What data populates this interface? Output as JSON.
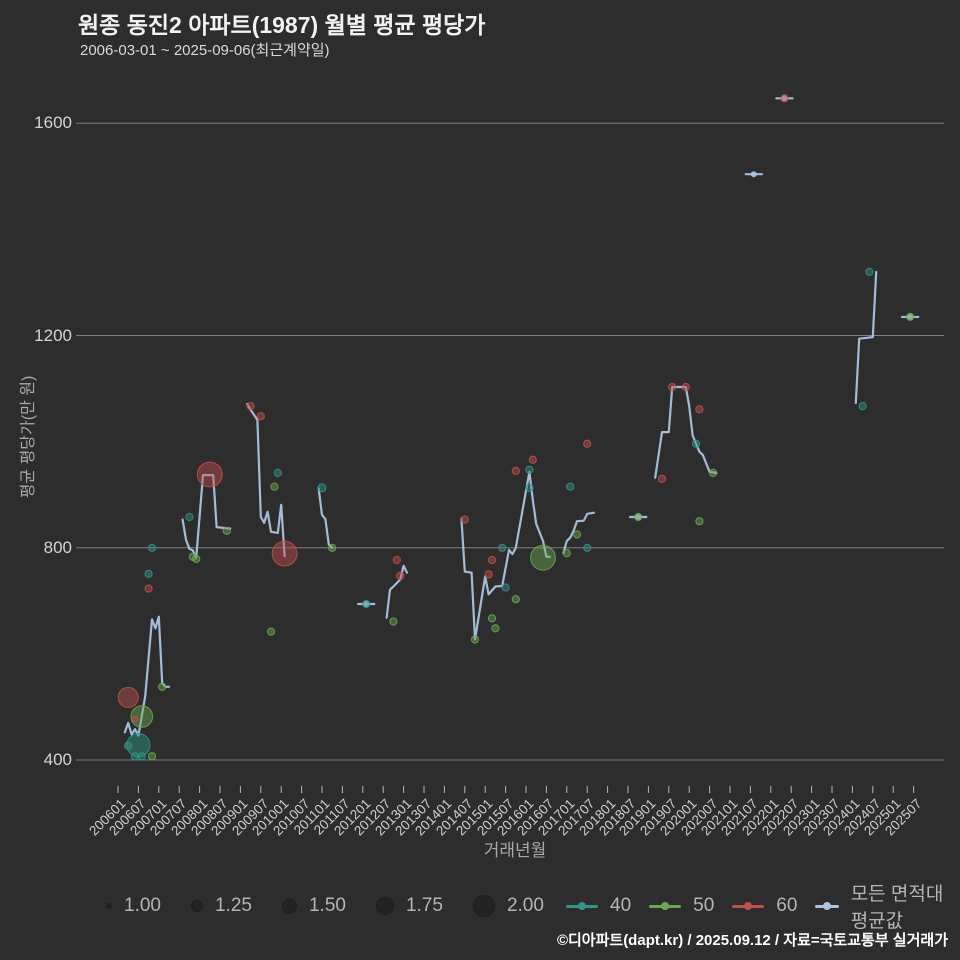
{
  "header": {
    "title": "원종 동진2 아파트(1987) 월별 평균 평당가",
    "subtitle": "2006-03-01 ~ 2025-09-06(최근계약일)"
  },
  "footer": {
    "credit": "©디아파트(dapt.kr) / 2025.09.12 / 자료=국토교통부 실거래가"
  },
  "colors": {
    "background": "#2d2d2d",
    "grid": "#9a9a9a",
    "avg_line": "#aac4e2",
    "area_40": "#2e9688",
    "area_50": "#6aa84f",
    "area_60": "#c0504d",
    "size_dot": "#232323"
  },
  "chart_data": {
    "type": "line+scatter",
    "title": "원종 동진2 아파트(1987) 월별 평균 평당가",
    "xlabel": "거래년월",
    "ylabel": "평균 평당가(만 원)",
    "grid": true,
    "y_axis": {
      "ticks": [
        400,
        800,
        1200,
        1600
      ],
      "range": [
        330,
        1700
      ]
    },
    "x_axis": {
      "tick_labels": [
        "200601",
        "200607",
        "200701",
        "200707",
        "200801",
        "200807",
        "200901",
        "200907",
        "201001",
        "201007",
        "201101",
        "201107",
        "201201",
        "201207",
        "201301",
        "201307",
        "201401",
        "201407",
        "201501",
        "201507",
        "201601",
        "201607",
        "201701",
        "201707",
        "201801",
        "201807",
        "201901",
        "201907",
        "202001",
        "202007",
        "202101",
        "202107",
        "202201",
        "202207",
        "202301",
        "202307",
        "202401",
        "202407",
        "202501",
        "202507"
      ]
    },
    "legend": {
      "sizes": [
        {
          "label": "1.00"
        },
        {
          "label": "1.25"
        },
        {
          "label": "1.50"
        },
        {
          "label": "1.75"
        },
        {
          "label": "2.00"
        }
      ],
      "series": [
        {
          "label": "40",
          "color": "#2e9688"
        },
        {
          "label": "50",
          "color": "#6aa84f"
        },
        {
          "label": "60",
          "color": "#c0504d"
        },
        {
          "label": "모든 면적대 평균값",
          "color": "#aac4e2"
        }
      ]
    },
    "avg_line": {
      "name": "모든 면적대 평균값",
      "segments": [
        [
          [
            200603,
            452
          ],
          [
            200604,
            470
          ],
          [
            200605,
            448
          ],
          [
            200606,
            458
          ],
          [
            200607,
            446
          ],
          [
            200609,
            520
          ],
          [
            200611,
            665
          ],
          [
            200612,
            648
          ],
          [
            200701,
            670
          ],
          [
            200702,
            545
          ],
          [
            200703,
            538
          ],
          [
            200704,
            538
          ]
        ],
        [
          [
            200708,
            853
          ],
          [
            200709,
            815
          ],
          [
            200710,
            798
          ],
          [
            200711,
            795
          ],
          [
            200712,
            781
          ],
          [
            200802,
            937
          ],
          [
            200805,
            937
          ],
          [
            200806,
            839
          ],
          [
            200810,
            836
          ]
        ],
        [
          [
            200903,
            1071
          ],
          [
            200904,
            1060
          ],
          [
            200906,
            1041
          ],
          [
            200907,
            858
          ],
          [
            200908,
            847
          ],
          [
            200909,
            868
          ],
          [
            200910,
            830
          ],
          [
            200912,
            828
          ],
          [
            201001,
            881
          ],
          [
            201002,
            784
          ]
        ],
        [
          [
            201012,
            912
          ],
          [
            201101,
            862
          ],
          [
            201102,
            854
          ],
          [
            201103,
            806
          ],
          [
            201104,
            800
          ]
        ],
        [
          [
            201202,
            694
          ]
        ],
        [
          [
            201208,
            668
          ],
          [
            201209,
            721
          ],
          [
            201210,
            727
          ],
          [
            201212,
            740
          ],
          [
            201301,
            766
          ],
          [
            201302,
            753
          ]
        ],
        [
          [
            201406,
            855
          ],
          [
            201407,
            755
          ],
          [
            201409,
            753
          ],
          [
            201410,
            627
          ],
          [
            201501,
            746
          ],
          [
            201502,
            712
          ],
          [
            201504,
            727
          ],
          [
            201506,
            728
          ],
          [
            201508,
            796
          ],
          [
            201509,
            788
          ],
          [
            201510,
            800
          ],
          [
            201602,
            943
          ],
          [
            201603,
            890
          ],
          [
            201604,
            845
          ],
          [
            201606,
            813
          ],
          [
            201607,
            783
          ],
          [
            201608,
            783
          ]
        ],
        [
          [
            201612,
            790
          ],
          [
            201701,
            813
          ],
          [
            201702,
            819
          ],
          [
            201703,
            832
          ],
          [
            201704,
            850
          ],
          [
            201706,
            851
          ],
          [
            201707,
            864
          ],
          [
            201709,
            866
          ]
        ],
        [
          [
            201810,
            858
          ]
        ],
        [
          [
            201903,
            932
          ],
          [
            201905,
            1018
          ],
          [
            201907,
            1018
          ],
          [
            201908,
            1103
          ],
          [
            201912,
            1103
          ],
          [
            202001,
            1067
          ],
          [
            202002,
            1012
          ],
          [
            202003,
            996
          ],
          [
            202004,
            981
          ],
          [
            202005,
            975
          ],
          [
            202007,
            943
          ],
          [
            202009,
            941
          ]
        ],
        [
          [
            202108,
            1504
          ]
        ],
        [
          [
            202205,
            1647
          ]
        ],
        [
          [
            202402,
            1073
          ],
          [
            202403,
            1194
          ],
          [
            202407,
            1197
          ],
          [
            202408,
            1320
          ]
        ],
        [
          [
            202506,
            1235
          ]
        ]
      ]
    },
    "scatter_order": [
      "area_group",
      "yyyymm",
      "value",
      "size"
    ],
    "scatter": [
      [
        "40",
        200604,
        427,
        1.2
      ],
      [
        "40",
        200606,
        407,
        1.2
      ],
      [
        "40",
        200608,
        407,
        1.2
      ],
      [
        "40",
        200607,
        428,
        2.2
      ],
      [
        "40",
        200610,
        751,
        1.2
      ],
      [
        "40",
        200611,
        800,
        1.2
      ],
      [
        "40",
        200710,
        858,
        1.2
      ],
      [
        "40",
        200912,
        941,
        1.2
      ],
      [
        "40",
        201101,
        913,
        1.25
      ],
      [
        "40",
        201202,
        694,
        1.2
      ],
      [
        "40",
        201506,
        800,
        1.2
      ],
      [
        "40",
        201507,
        725,
        1.2
      ],
      [
        "40",
        201602,
        947,
        1.2
      ],
      [
        "40",
        201602,
        913,
        1.2
      ],
      [
        "40",
        201702,
        915,
        1.2
      ],
      [
        "40",
        201707,
        800,
        1.2
      ],
      [
        "40",
        202003,
        996,
        1.2
      ],
      [
        "40",
        202404,
        1067,
        1.2
      ],
      [
        "40",
        202406,
        1320,
        1.2
      ],
      [
        "50",
        200608,
        482,
        2.1
      ],
      [
        "50",
        200611,
        407,
        1.2
      ],
      [
        "50",
        200702,
        538,
        1.2
      ],
      [
        "50",
        200711,
        783,
        1.2
      ],
      [
        "50",
        200712,
        779,
        1.2
      ],
      [
        "50",
        200809,
        832,
        1.2
      ],
      [
        "50",
        200910,
        642,
        1.2
      ],
      [
        "50",
        200911,
        915,
        1.2
      ],
      [
        "50",
        201104,
        800,
        1.2
      ],
      [
        "50",
        201210,
        661,
        1.2
      ],
      [
        "50",
        201410,
        627,
        1.2
      ],
      [
        "50",
        201503,
        667,
        1.2
      ],
      [
        "50",
        201504,
        648,
        1.2
      ],
      [
        "50",
        201510,
        703,
        1.2
      ],
      [
        "50",
        201606,
        781,
        2.3
      ],
      [
        "50",
        201701,
        790,
        1.2
      ],
      [
        "50",
        201704,
        825,
        1.2
      ],
      [
        "50",
        201810,
        858,
        1.2
      ],
      [
        "50",
        202004,
        850,
        1.2
      ],
      [
        "50",
        202008,
        941,
        1.2
      ],
      [
        "50",
        202506,
        1235,
        1.2
      ],
      [
        "60",
        200604,
        518,
        2.0
      ],
      [
        "60",
        200606,
        477,
        1.1
      ],
      [
        "60",
        200610,
        723,
        1.2
      ],
      [
        "60",
        200804,
        938,
        2.3
      ],
      [
        "60",
        200904,
        1067,
        1.2
      ],
      [
        "60",
        200907,
        1048,
        1.2
      ],
      [
        "60",
        201002,
        789,
        2.3
      ],
      [
        "60",
        201211,
        777,
        1.2
      ],
      [
        "60",
        201212,
        747,
        1.2
      ],
      [
        "60",
        201407,
        853,
        1.2
      ],
      [
        "60",
        201502,
        750,
        1.2
      ],
      [
        "60",
        201503,
        777,
        1.2
      ],
      [
        "60",
        201510,
        945,
        1.2
      ],
      [
        "60",
        201603,
        966,
        1.2
      ],
      [
        "60",
        201707,
        996,
        1.2
      ],
      [
        "60",
        201905,
        930,
        1.2
      ],
      [
        "60",
        201908,
        1103,
        1.2
      ],
      [
        "60",
        201912,
        1103,
        1.2
      ],
      [
        "60",
        202004,
        1061,
        1.2
      ],
      [
        "60",
        202205,
        1647,
        1.2
      ]
    ]
  }
}
